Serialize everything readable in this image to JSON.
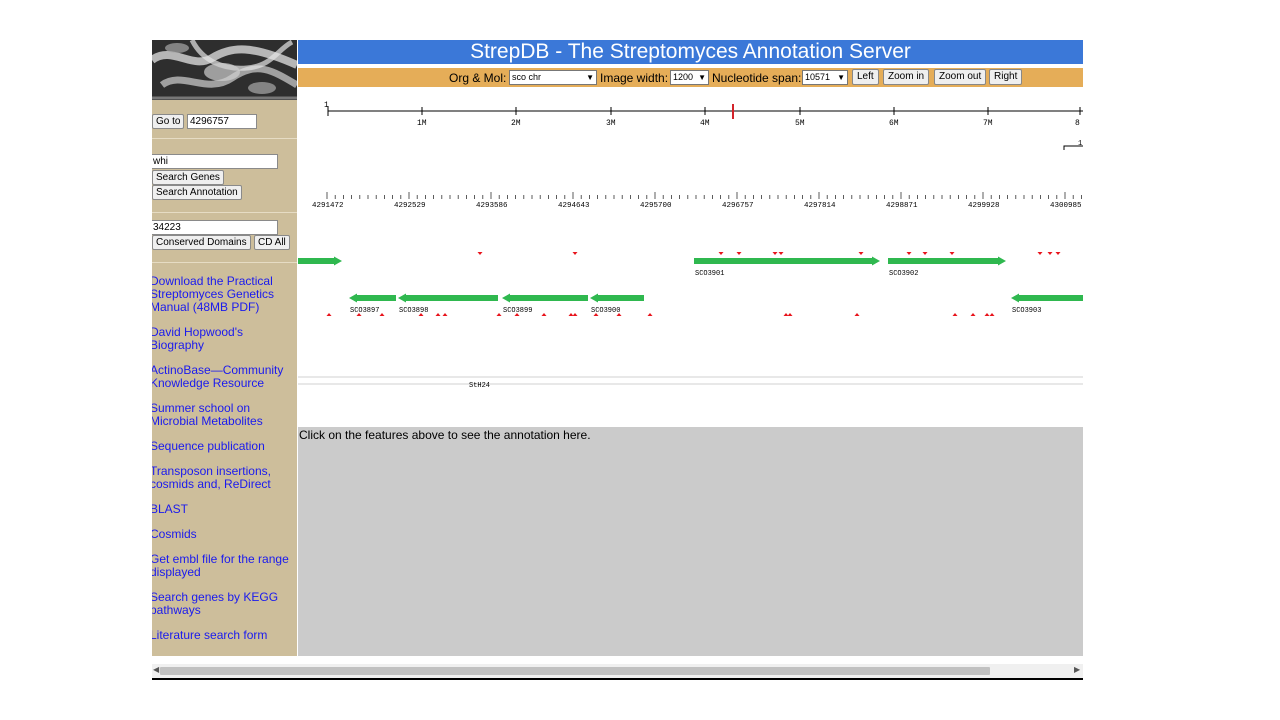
{
  "header": {
    "title": "StrepDB - The Streptomyces Annotation Server"
  },
  "controls": {
    "org_label": "Org & Mol:",
    "org_value": "sco chr",
    "width_label": "Image width:",
    "width_value": "1200",
    "span_label": "Nucleotide span:",
    "span_value": "10571",
    "left_btn": "Left",
    "zoom_in_btn": "Zoom in",
    "zoom_out_btn": "Zoom out",
    "right_btn": "Right"
  },
  "sidebar": {
    "goto_btn": "Go to",
    "goto_value": "4296757",
    "search_value": "whi",
    "search_genes_btn": "Search Genes",
    "search_annotation_btn": "Search Annotation",
    "domain_value": "34223",
    "conserved_btn": "Conserved Domains",
    "cd_all_btn": "CD All",
    "links": [
      {
        "line1": "Download the Practical",
        "line2": "Streptomyces Genetics",
        "line3": "Manual (48MB PDF)"
      },
      {
        "line1": "David Hopwood's",
        "line2": "Biography"
      },
      {
        "line1": "ActinoBase—Community",
        "line2": "Knowledge Resource"
      },
      {
        "line1": "Summer school on",
        "line2": "Microbial Metabolites"
      },
      {
        "line1": "Sequence publication"
      },
      {
        "line1": "Transposon insertions,",
        "line2": "cosmids and, ReDirect"
      },
      {
        "line1": "BLAST"
      },
      {
        "line1": "Cosmids"
      },
      {
        "line1": "Get embl file for the range",
        "line2": "displayed"
      },
      {
        "line1": "Search genes by KEGG",
        "line2": "pathways"
      },
      {
        "line1": "Literature search form"
      }
    ]
  },
  "overview": {
    "start_label": "1",
    "ticks": [
      "1M",
      "2M",
      "3M",
      "4M",
      "5M",
      "6M",
      "7M",
      "8"
    ],
    "marker_label": "1("
  },
  "detail": {
    "ticks": [
      "4291472",
      "4292529",
      "4293586",
      "4294643",
      "4295700",
      "4296757",
      "4297814",
      "4298871",
      "4299928",
      "4300985"
    ]
  },
  "genes": {
    "forward": [
      {
        "name": ""
      },
      {
        "name": "SCO3901"
      },
      {
        "name": "SCO3902"
      }
    ],
    "reverse": [
      {
        "name": "SCO3897"
      },
      {
        "name": "SCO3898"
      },
      {
        "name": "SCO3899"
      },
      {
        "name": "SCO3900"
      },
      {
        "name": "SCO3903"
      }
    ],
    "gene_color": "#2fb84f",
    "site_color": "#e8141c"
  },
  "cosmid": {
    "label": "StH24"
  },
  "annotation": {
    "text": "Click on the features above to see the annotation here."
  },
  "colors": {
    "title_bg": "#3b78d8",
    "controls_bg": "#e5ad58",
    "sidebar_bg": "#cdbe9b",
    "annotation_bg": "#cbcbcb",
    "link": "#1a1aee"
  }
}
